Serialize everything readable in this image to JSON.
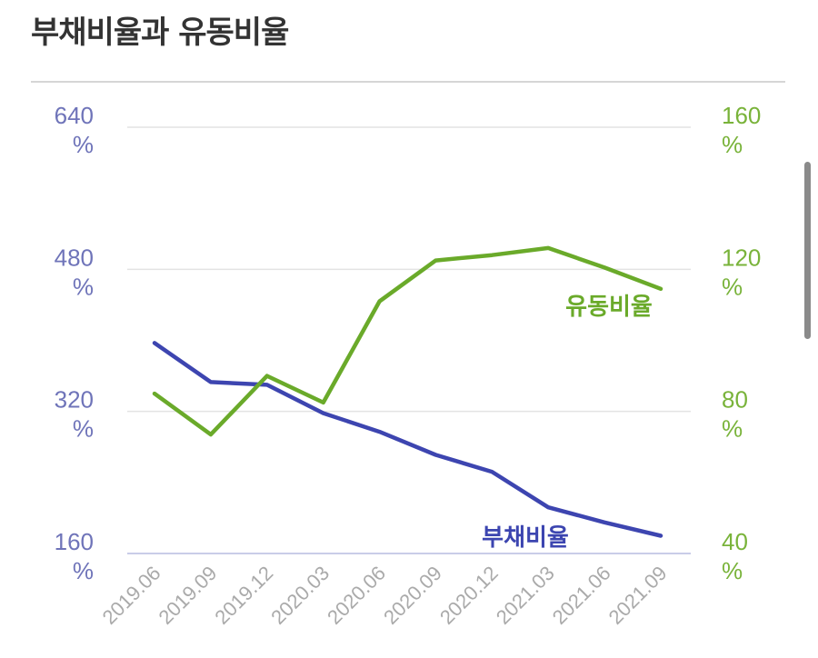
{
  "chart_data": {
    "type": "line",
    "title": "부채비율과 유동비율",
    "categories": [
      "2019.06",
      "2019.09",
      "2019.12",
      "2020.03",
      "2020.06",
      "2020.09",
      "2020.12",
      "2021.03",
      "2021.06",
      "2021.09"
    ],
    "y_left": {
      "ticks": [
        "640",
        "480",
        "320",
        "160"
      ],
      "unit": "%",
      "ylim": [
        160,
        640
      ]
    },
    "y_right": {
      "ticks": [
        "160",
        "120",
        "80",
        "40"
      ],
      "unit": "%",
      "ylim": [
        40,
        160
      ]
    },
    "series": [
      {
        "name": "부채비율",
        "axis": "left",
        "color": "#3d45b0",
        "values": [
          397,
          353,
          350,
          318,
          297,
          271,
          252,
          212,
          195,
          180
        ]
      },
      {
        "name": "유동비율",
        "axis": "right",
        "color": "#6aaa2a",
        "values": [
          85,
          73.5,
          90,
          82.5,
          111,
          122.5,
          124,
          126,
          120.5,
          114.5
        ]
      }
    ],
    "grid": true,
    "legend": "inline-labels"
  }
}
